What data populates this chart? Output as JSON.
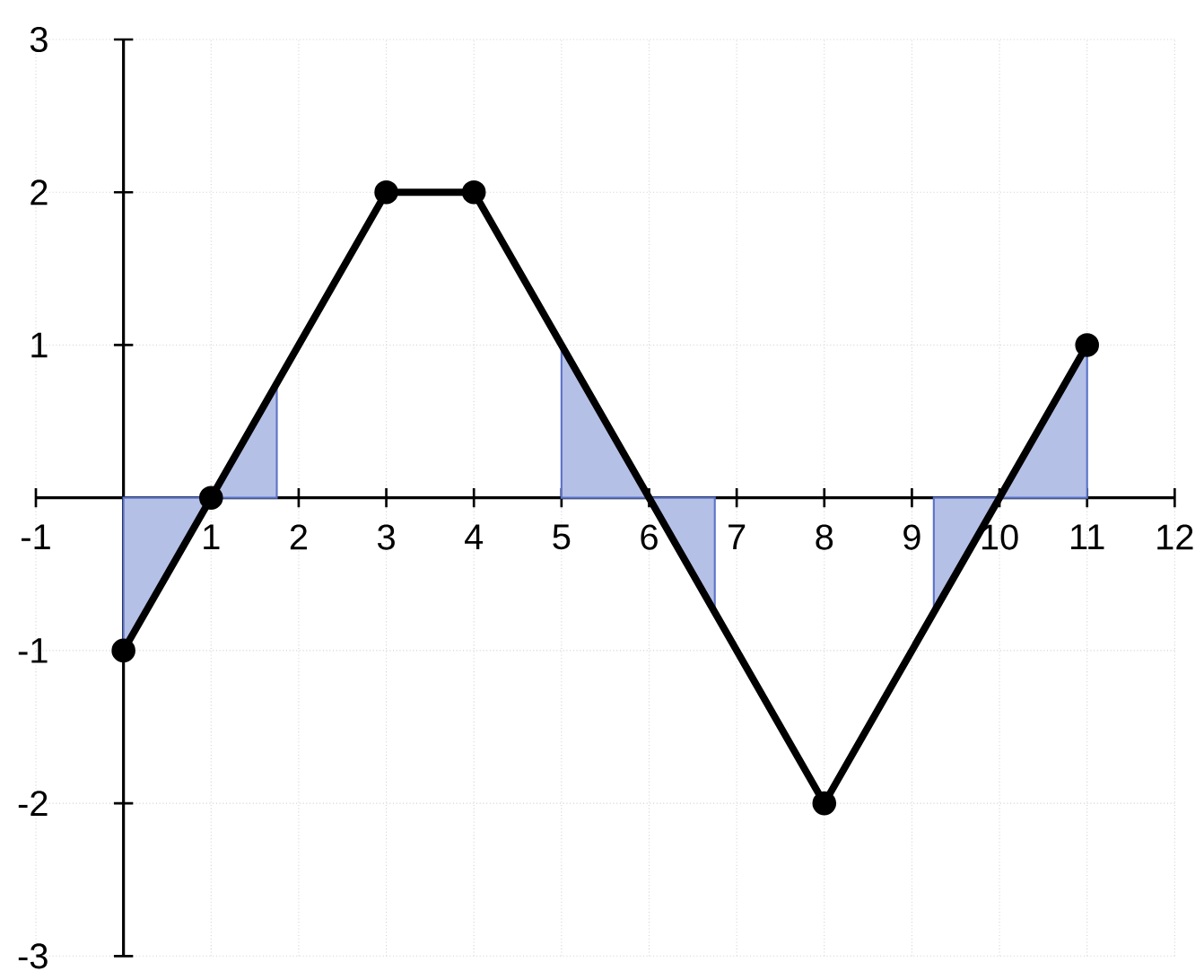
{
  "chart_data": {
    "type": "line",
    "xlim": [
      -1,
      12
    ],
    "ylim": [
      -3,
      3
    ],
    "xticks": [
      -1,
      1,
      2,
      3,
      4,
      5,
      6,
      7,
      8,
      9,
      10,
      11,
      12
    ],
    "yticks": [
      -3,
      -2,
      -1,
      1,
      2,
      3
    ],
    "grid": true,
    "line_style": "solid",
    "series": [
      {
        "type": "area",
        "color": "#5b73c9",
        "x": [
          0,
          1,
          1.75
        ],
        "values": [
          -1,
          0,
          0.75
        ]
      },
      {
        "type": "area",
        "color": "#5b73c9",
        "x": [
          5,
          6,
          6.75
        ],
        "values": [
          1,
          0,
          -0.75
        ]
      },
      {
        "type": "area",
        "color": "#5b73c9",
        "x": [
          9.25,
          10,
          11
        ],
        "values": [
          -0.75,
          0,
          1
        ]
      },
      {
        "color": "#000000",
        "marker": "circle",
        "x": [
          0,
          1,
          3,
          4,
          8,
          11
        ],
        "values": [
          -1,
          0,
          2,
          2,
          -2,
          1
        ]
      }
    ]
  }
}
